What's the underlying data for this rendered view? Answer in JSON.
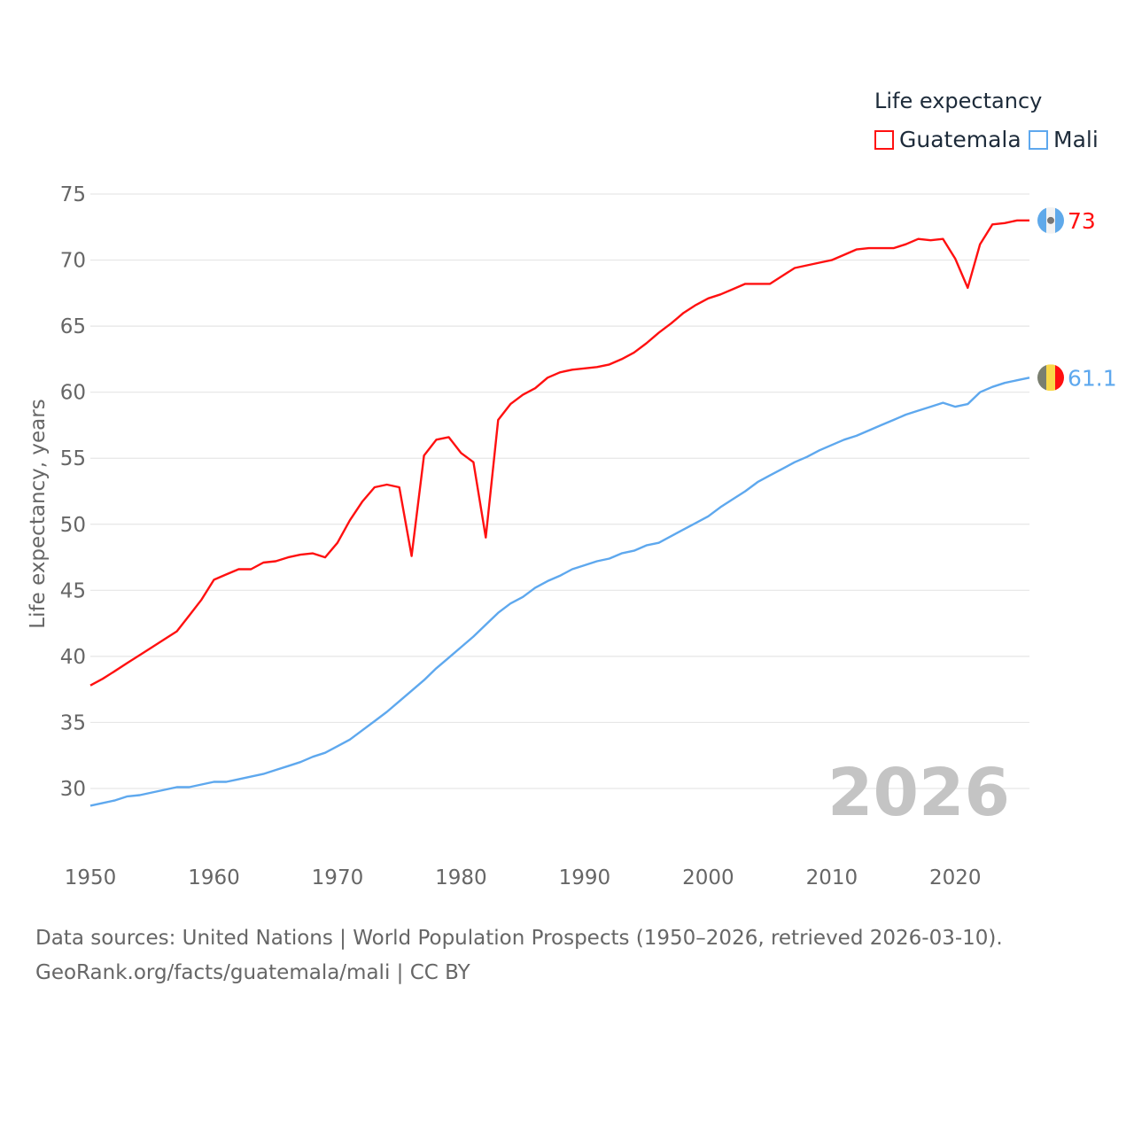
{
  "chart_data": {
    "type": "line",
    "title": "",
    "ylabel": "Life expectancy, years",
    "xlabel": "",
    "xlim": [
      1950,
      2026
    ],
    "ylim": [
      27,
      76
    ],
    "yticks": [
      30,
      35,
      40,
      45,
      50,
      55,
      60,
      65,
      70,
      75
    ],
    "xticks": [
      1950,
      1960,
      1970,
      1980,
      1990,
      2000,
      2010,
      2020
    ],
    "grid": true,
    "legend": {
      "title": "Life expectancy",
      "placement": "top-right"
    },
    "year_label": "2026",
    "x_start": 1950,
    "series": [
      {
        "name": "Guatemala",
        "color": "#ff1010",
        "end_label": "73",
        "values": [
          37.8,
          38.3,
          38.9,
          39.5,
          40.1,
          40.7,
          41.3,
          41.9,
          43.1,
          44.3,
          45.8,
          46.2,
          46.6,
          46.6,
          47.1,
          47.2,
          47.5,
          47.7,
          47.8,
          47.5,
          48.6,
          50.3,
          51.7,
          52.8,
          53.0,
          52.8,
          47.6,
          55.2,
          56.4,
          56.6,
          55.4,
          54.7,
          49.0,
          57.9,
          59.1,
          59.8,
          60.3,
          61.1,
          61.5,
          61.7,
          61.8,
          61.9,
          62.1,
          62.5,
          63.0,
          63.7,
          64.5,
          65.2,
          66.0,
          66.6,
          67.1,
          67.4,
          67.8,
          68.2,
          68.2,
          68.2,
          68.8,
          69.4,
          69.6,
          69.8,
          70.0,
          70.4,
          70.8,
          70.9,
          70.9,
          70.9,
          71.2,
          71.6,
          71.5,
          71.6,
          70.1,
          67.9,
          71.2,
          72.7,
          72.8,
          73.0,
          73.0
        ]
      },
      {
        "name": "Mali",
        "color": "#5ea8ee",
        "end_label": "61.1",
        "values": [
          28.7,
          28.9,
          29.1,
          29.4,
          29.5,
          29.7,
          29.9,
          30.1,
          30.1,
          30.3,
          30.5,
          30.5,
          30.7,
          30.9,
          31.1,
          31.4,
          31.7,
          32.0,
          32.4,
          32.7,
          33.2,
          33.7,
          34.4,
          35.1,
          35.8,
          36.6,
          37.4,
          38.2,
          39.1,
          39.9,
          40.7,
          41.5,
          42.4,
          43.3,
          44.0,
          44.5,
          45.2,
          45.7,
          46.1,
          46.6,
          46.9,
          47.2,
          47.4,
          47.8,
          48.0,
          48.4,
          48.6,
          49.1,
          49.6,
          50.1,
          50.6,
          51.3,
          51.9,
          52.5,
          53.2,
          53.7,
          54.2,
          54.7,
          55.1,
          55.6,
          56.0,
          56.4,
          56.7,
          57.1,
          57.5,
          57.9,
          58.3,
          58.6,
          58.9,
          59.2,
          58.9,
          59.1,
          60.0,
          60.4,
          60.7,
          60.9,
          61.1
        ]
      }
    ]
  },
  "footer": {
    "line1": "Data sources: United Nations | World Population Prospects (1950–2026, retrieved 2026-03-10).",
    "line2": "GeoRank.org/facts/guatemala/mali | CC BY"
  }
}
